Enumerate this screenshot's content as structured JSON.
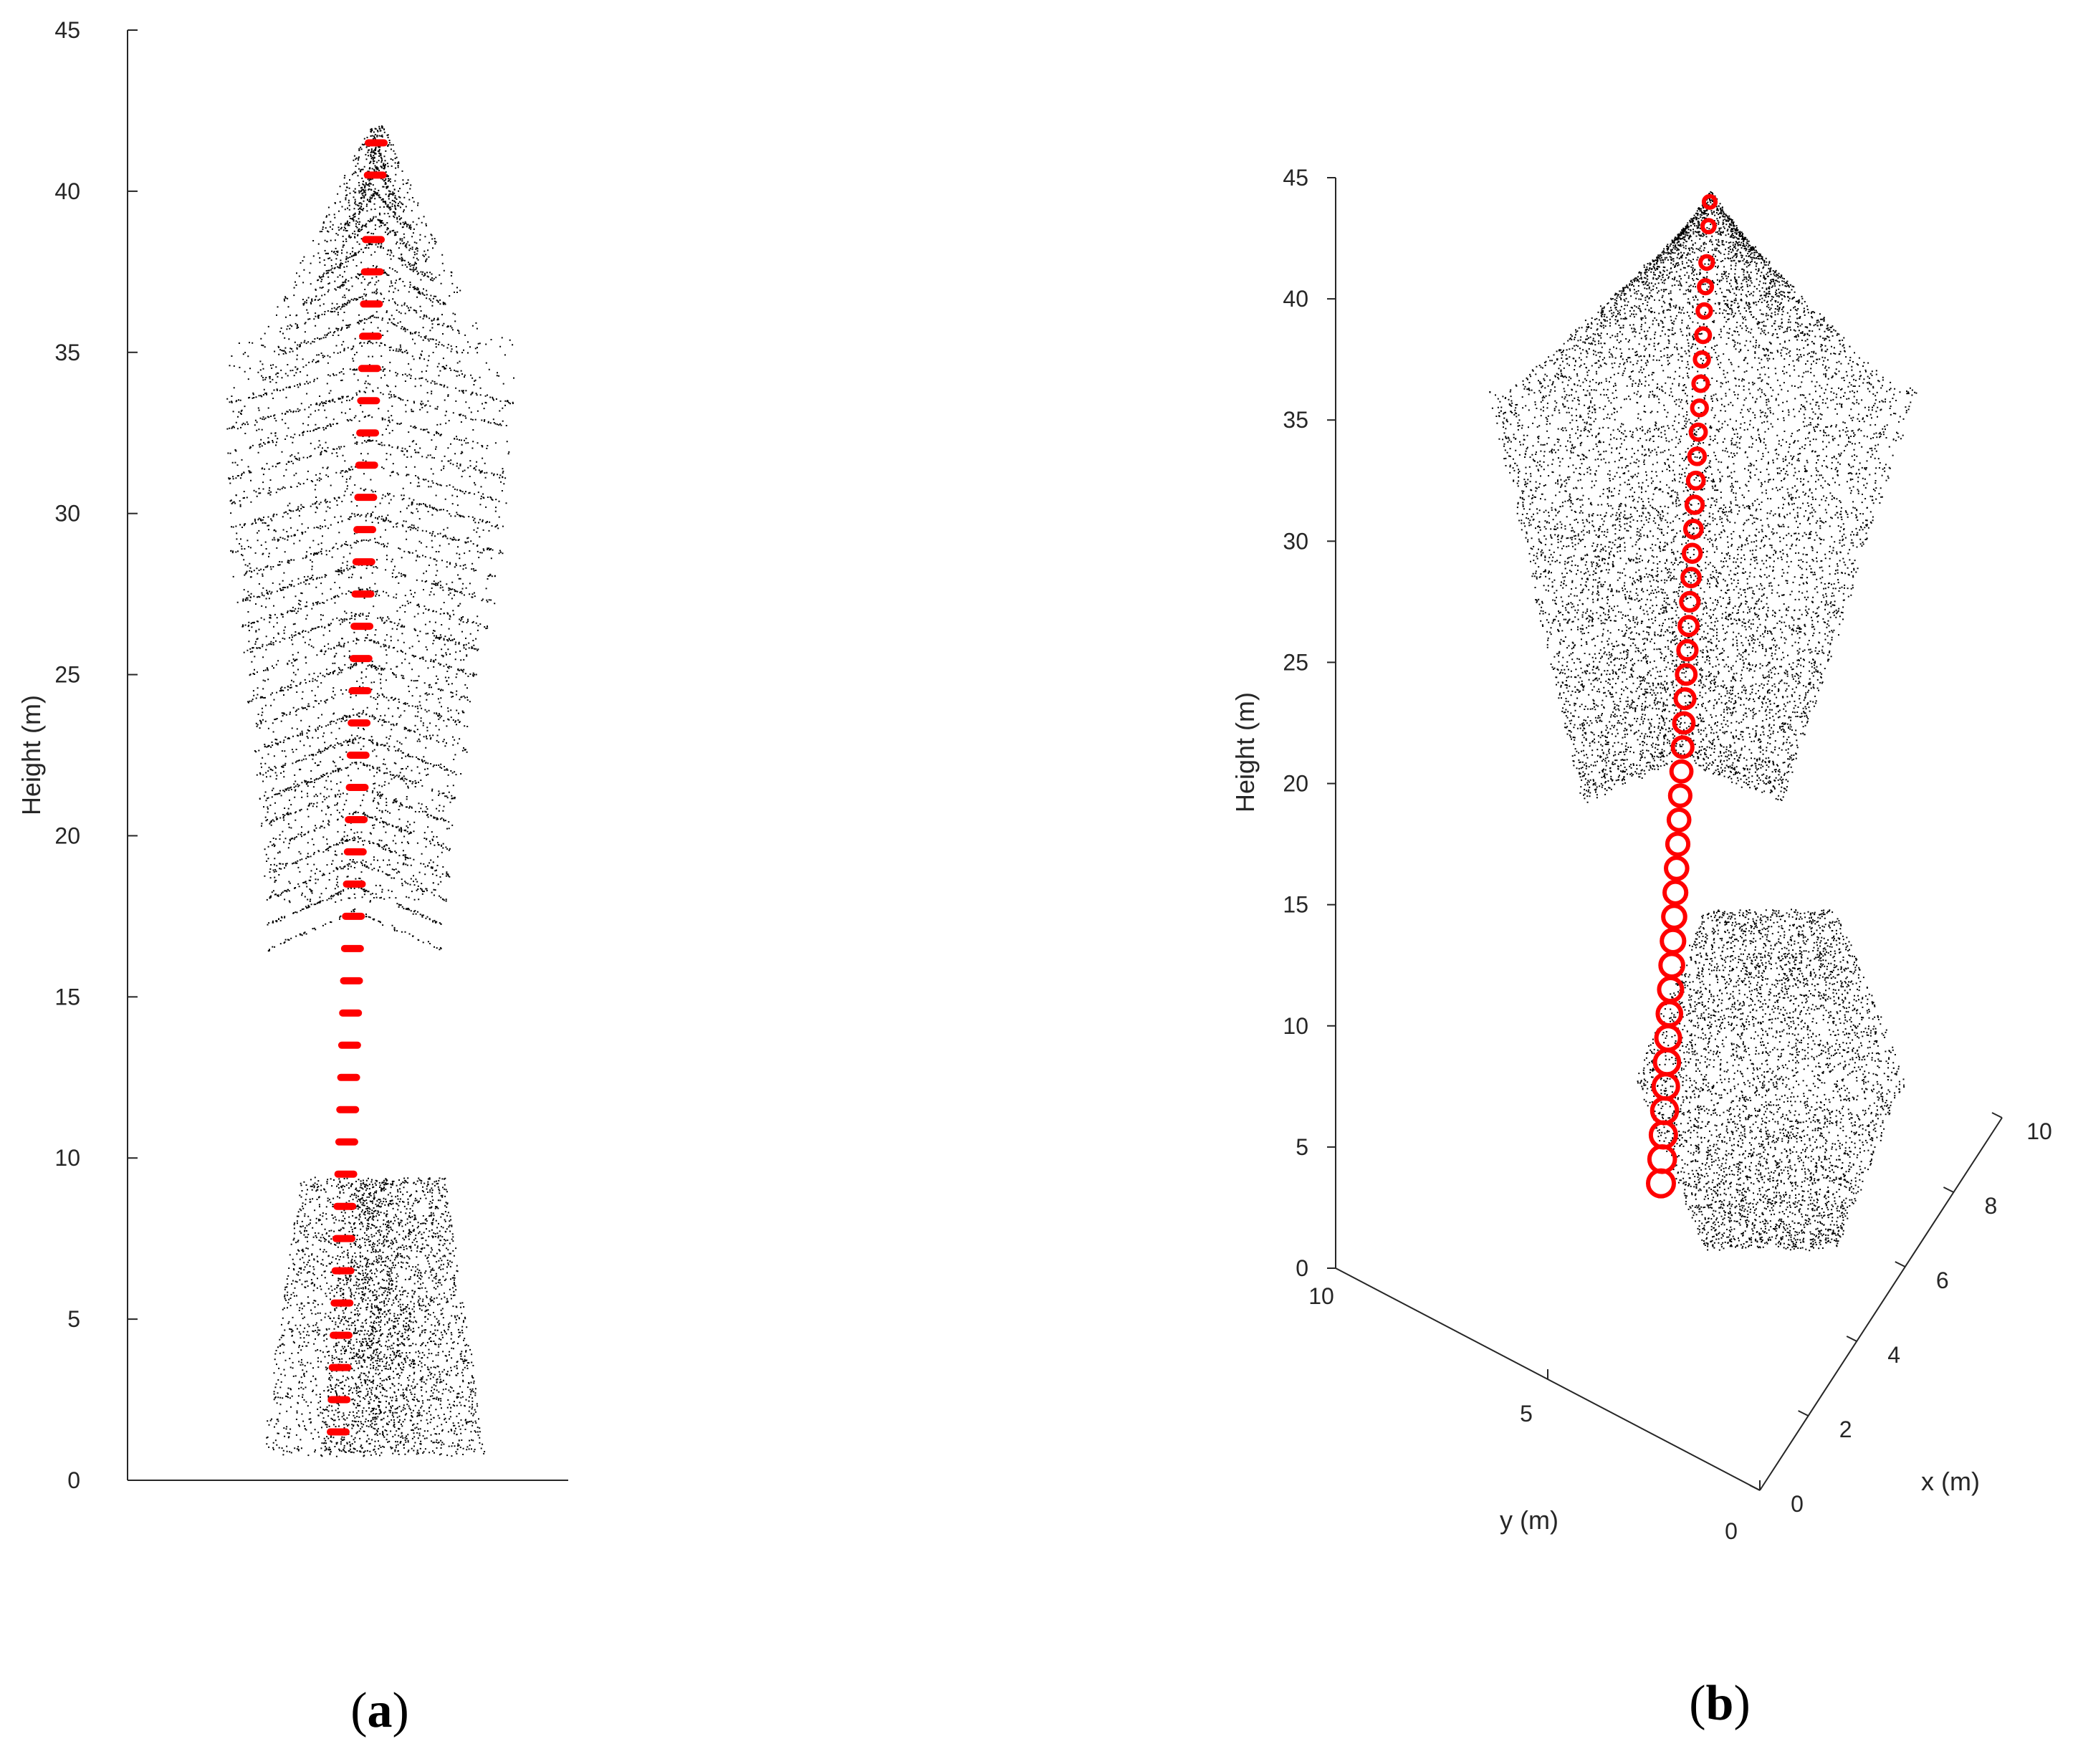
{
  "chart_data": [
    {
      "panel": "a",
      "type": "scatter",
      "view": "2D side view",
      "ylabel": "Height (m)",
      "ylim": [
        0,
        45
      ],
      "yticks": [
        0,
        5,
        10,
        15,
        20,
        25,
        30,
        35,
        40,
        45
      ],
      "series": [
        {
          "marker": "red horizontal slice markers",
          "color": "#ff0000",
          "height_m": [
            1.5,
            2.5,
            3.5,
            4.5,
            5.5,
            6.5,
            7.5,
            8.5,
            9.5,
            10.5,
            11.5,
            12.5,
            13.5,
            14.5,
            15.5,
            16.5,
            17.5,
            18.5,
            19.5,
            20.5,
            21.5,
            22.5,
            23.5,
            24.5,
            25.5,
            26.5,
            27.5,
            28.5,
            29.5,
            30.5,
            31.5,
            32.5,
            33.5,
            34.5,
            35.5,
            36.5,
            37.5,
            38.5,
            40.5,
            41.5
          ]
        }
      ],
      "point_cloud_color": "#000000"
    },
    {
      "panel": "b",
      "type": "scatter",
      "view": "3D",
      "xlabel": "x (m)",
      "ylabel": "y (m)",
      "zlabel": "Height (m)",
      "xlim": [
        0,
        10
      ],
      "ylim": [
        0,
        10
      ],
      "zlim": [
        0,
        45
      ],
      "xticks": [
        0,
        2,
        4,
        6,
        8,
        10
      ],
      "yticks": [
        0,
        5,
        10
      ],
      "zticks": [
        0,
        5,
        10,
        15,
        20,
        25,
        30,
        35,
        40,
        45
      ],
      "series": [
        {
          "marker": "red open circles",
          "color": "#ff0000",
          "height_m": [
            3.5,
            4.5,
            5.5,
            6.5,
            7.5,
            8.5,
            9.5,
            10.5,
            11.5,
            12.5,
            13.5,
            14.5,
            15.5,
            16.5,
            17.5,
            18.5,
            19.5,
            20.5,
            21.5,
            22.5,
            23.5,
            24.5,
            25.5,
            26.5,
            27.5,
            28.5,
            29.5,
            30.5,
            31.5,
            32.5,
            33.5,
            34.5,
            35.5,
            36.5,
            37.5,
            38.5,
            39.5,
            40.5,
            41.5,
            43.0,
            44.0
          ]
        }
      ],
      "point_cloud_color": "#000000"
    }
  ],
  "panel_labels": {
    "a": {
      "open": "(",
      "letter": "a",
      "close": ")"
    },
    "b": {
      "open": "(",
      "letter": "b",
      "close": ")"
    }
  }
}
